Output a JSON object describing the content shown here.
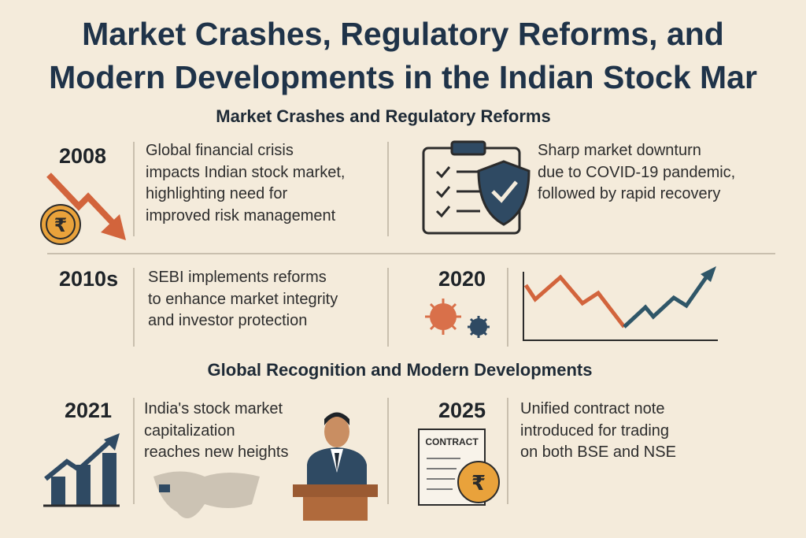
{
  "title": [
    "Market Crashes, Regulatory Reforms, and",
    "Modern Developments in the Indian Stock Mar"
  ],
  "sections": [
    {
      "heading": "Market Crashes and Regulatory Reforms",
      "items": [
        {
          "year": "2008",
          "text": [
            "Global financial crisis",
            "impacts Indian stock market,",
            "highlighting need for",
            "improved risk management"
          ],
          "icon_text": "₹"
        },
        {
          "text": [
            "Sharp market downturn",
            "due to COVID-19 pandemic,",
            "followed by rapid recovery"
          ]
        },
        {
          "year": "2010s",
          "text": [
            "SEBI implements reforms",
            "to enhance market integrity",
            "and investor protection"
          ]
        },
        {
          "year": "2020"
        }
      ]
    },
    {
      "heading": "Global Recognition and Modern Developments",
      "items": [
        {
          "year": "2021",
          "text": [
            "India's stock market",
            "capitalization",
            "reaches new heights"
          ]
        },
        {
          "year": "2025",
          "text": [
            "Unified contract note",
            "introduced for trading",
            "on both BSE and NSE"
          ],
          "icon_text": [
            "CONTRACT",
            "₹"
          ]
        }
      ]
    }
  ]
}
